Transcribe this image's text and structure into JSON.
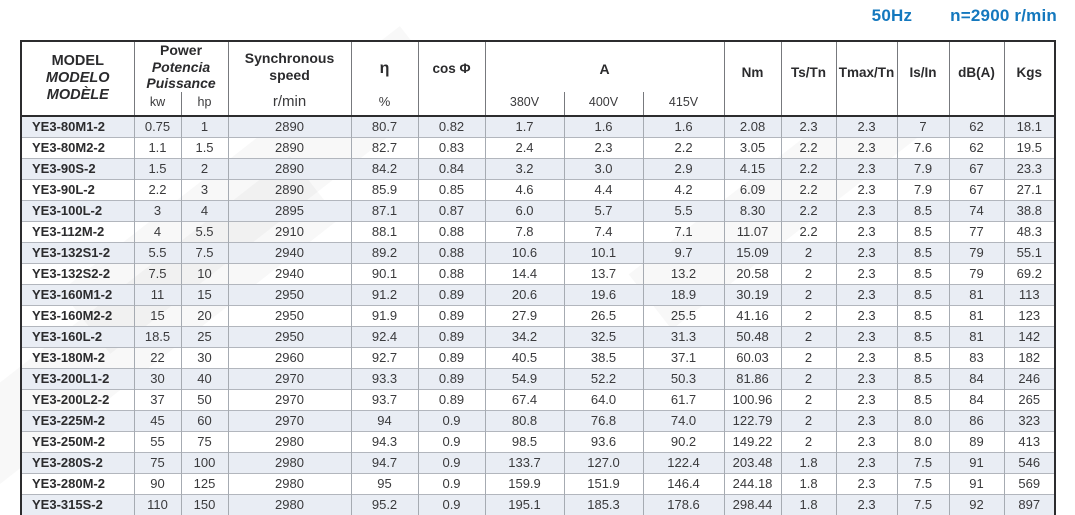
{
  "page_header": {
    "frequency": "50Hz",
    "speed": "n=2900 r/min"
  },
  "colors": {
    "accent_blue": "#1478be",
    "row_shade": "#e9edf4",
    "border_dark": "#2c2c2e"
  },
  "table": {
    "columns": {
      "model": [
        "MODEL",
        "MODELO",
        "MODÈLE"
      ],
      "power": {
        "lines": [
          "Power",
          "Potencia",
          "Puissance"
        ],
        "sub_kw": "kw",
        "sub_hp": "hp"
      },
      "speed": {
        "lines": [
          "Synchronous",
          "speed"
        ],
        "sub": "r/min"
      },
      "efficiency": {
        "label": "η",
        "sub": "%"
      },
      "cos_phi": {
        "label": "cos Φ"
      },
      "current": {
        "label": "A",
        "sub": [
          "380V",
          "400V",
          "415V"
        ]
      },
      "nm": "Nm",
      "ts_tn": "Ts/Tn",
      "tmax_tn": "Tmax/Tn",
      "is_in": "Is/In",
      "dba": "dB(A)",
      "kgs": "Kgs"
    },
    "rows": [
      [
        "YE3-80M1-2",
        "0.75",
        "1",
        "2890",
        "80.7",
        "0.82",
        "1.7",
        "1.6",
        "1.6",
        "2.08",
        "2.3",
        "2.3",
        "7",
        "62",
        "18.1"
      ],
      [
        "YE3-80M2-2",
        "1.1",
        "1.5",
        "2890",
        "82.7",
        "0.83",
        "2.4",
        "2.3",
        "2.2",
        "3.05",
        "2.2",
        "2.3",
        "7.6",
        "62",
        "19.5"
      ],
      [
        "YE3-90S-2",
        "1.5",
        "2",
        "2890",
        "84.2",
        "0.84",
        "3.2",
        "3.0",
        "2.9",
        "4.15",
        "2.2",
        "2.3",
        "7.9",
        "67",
        "23.3"
      ],
      [
        "YE3-90L-2",
        "2.2",
        "3",
        "2890",
        "85.9",
        "0.85",
        "4.6",
        "4.4",
        "4.2",
        "6.09",
        "2.2",
        "2.3",
        "7.9",
        "67",
        "27.1"
      ],
      [
        "YE3-100L-2",
        "3",
        "4",
        "2895",
        "87.1",
        "0.87",
        "6.0",
        "5.7",
        "5.5",
        "8.30",
        "2.2",
        "2.3",
        "8.5",
        "74",
        "38.8"
      ],
      [
        "YE3-112M-2",
        "4",
        "5.5",
        "2910",
        "88.1",
        "0.88",
        "7.8",
        "7.4",
        "7.1",
        "11.07",
        "2.2",
        "2.3",
        "8.5",
        "77",
        "48.3"
      ],
      [
        "YE3-132S1-2",
        "5.5",
        "7.5",
        "2940",
        "89.2",
        "0.88",
        "10.6",
        "10.1",
        "9.7",
        "15.09",
        "2",
        "2.3",
        "8.5",
        "79",
        "55.1"
      ],
      [
        "YE3-132S2-2",
        "7.5",
        "10",
        "2940",
        "90.1",
        "0.88",
        "14.4",
        "13.7",
        "13.2",
        "20.58",
        "2",
        "2.3",
        "8.5",
        "79",
        "69.2"
      ],
      [
        "YE3-160M1-2",
        "11",
        "15",
        "2950",
        "91.2",
        "0.89",
        "20.6",
        "19.6",
        "18.9",
        "30.19",
        "2",
        "2.3",
        "8.5",
        "81",
        "113"
      ],
      [
        "YE3-160M2-2",
        "15",
        "20",
        "2950",
        "91.9",
        "0.89",
        "27.9",
        "26.5",
        "25.5",
        "41.16",
        "2",
        "2.3",
        "8.5",
        "81",
        "123"
      ],
      [
        "YE3-160L-2",
        "18.5",
        "25",
        "2950",
        "92.4",
        "0.89",
        "34.2",
        "32.5",
        "31.3",
        "50.48",
        "2",
        "2.3",
        "8.5",
        "81",
        "142"
      ],
      [
        "YE3-180M-2",
        "22",
        "30",
        "2960",
        "92.7",
        "0.89",
        "40.5",
        "38.5",
        "37.1",
        "60.03",
        "2",
        "2.3",
        "8.5",
        "83",
        "182"
      ],
      [
        "YE3-200L1-2",
        "30",
        "40",
        "2970",
        "93.3",
        "0.89",
        "54.9",
        "52.2",
        "50.3",
        "81.86",
        "2",
        "2.3",
        "8.5",
        "84",
        "246"
      ],
      [
        "YE3-200L2-2",
        "37",
        "50",
        "2970",
        "93.7",
        "0.89",
        "67.4",
        "64.0",
        "61.7",
        "100.96",
        "2",
        "2.3",
        "8.5",
        "84",
        "265"
      ],
      [
        "YE3-225M-2",
        "45",
        "60",
        "2970",
        "94",
        "0.9",
        "80.8",
        "76.8",
        "74.0",
        "122.79",
        "2",
        "2.3",
        "8.0",
        "86",
        "323"
      ],
      [
        "YE3-250M-2",
        "55",
        "75",
        "2980",
        "94.3",
        "0.9",
        "98.5",
        "93.6",
        "90.2",
        "149.22",
        "2",
        "2.3",
        "8.0",
        "89",
        "413"
      ],
      [
        "YE3-280S-2",
        "75",
        "100",
        "2980",
        "94.7",
        "0.9",
        "133.7",
        "127.0",
        "122.4",
        "203.48",
        "1.8",
        "2.3",
        "7.5",
        "91",
        "546"
      ],
      [
        "YE3-280M-2",
        "90",
        "125",
        "2980",
        "95",
        "0.9",
        "159.9",
        "151.9",
        "146.4",
        "244.18",
        "1.8",
        "2.3",
        "7.5",
        "91",
        "569"
      ],
      [
        "YE3-315S-2",
        "110",
        "150",
        "2980",
        "95.2",
        "0.9",
        "195.1",
        "185.3",
        "178.6",
        "298.44",
        "1.8",
        "2.3",
        "7.5",
        "92",
        "897"
      ]
    ]
  }
}
